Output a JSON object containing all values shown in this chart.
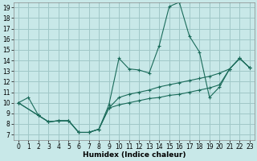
{
  "xlabel": "Humidex (Indice chaleur)",
  "bg_color": "#c8e8e8",
  "grid_color": "#a0c8c8",
  "line_color": "#1a6b5a",
  "xlim": [
    -0.5,
    23.5
  ],
  "ylim": [
    6.5,
    19.5
  ],
  "xticks": [
    0,
    1,
    2,
    3,
    4,
    5,
    6,
    7,
    8,
    9,
    10,
    11,
    12,
    13,
    14,
    15,
    16,
    17,
    18,
    19,
    20,
    21,
    22,
    23
  ],
  "yticks": [
    7,
    8,
    9,
    10,
    11,
    12,
    13,
    14,
    15,
    16,
    17,
    18,
    19
  ],
  "curve_max_x": [
    0,
    1,
    2,
    3,
    4,
    5,
    6,
    7,
    8,
    9,
    10,
    11,
    12,
    13,
    14,
    15,
    16,
    17,
    18,
    19,
    20,
    21,
    22,
    23
  ],
  "curve_max_y": [
    10.0,
    10.5,
    8.8,
    8.2,
    8.3,
    8.3,
    7.2,
    7.2,
    7.5,
    9.8,
    14.2,
    13.2,
    13.1,
    12.8,
    15.4,
    19.1,
    19.5,
    16.3,
    14.8,
    10.5,
    11.5,
    13.2,
    14.2,
    13.3
  ],
  "curve_min_x": [
    0,
    2,
    3,
    4,
    5,
    6,
    7,
    8,
    9,
    10,
    11,
    12,
    13,
    14,
    15,
    16,
    17,
    18,
    19,
    20,
    21,
    22,
    23
  ],
  "curve_min_y": [
    10.0,
    8.8,
    8.2,
    8.3,
    8.3,
    7.2,
    7.2,
    7.5,
    9.5,
    9.8,
    10.0,
    10.2,
    10.4,
    10.5,
    10.7,
    10.8,
    11.0,
    11.2,
    11.4,
    11.7,
    13.2,
    14.2,
    13.3
  ],
  "curve_mean_x": [
    0,
    2,
    3,
    4,
    5,
    6,
    7,
    8,
    9,
    10,
    11,
    12,
    13,
    14,
    15,
    16,
    17,
    18,
    19,
    20,
    21,
    22,
    23
  ],
  "curve_mean_y": [
    10.0,
    8.8,
    8.2,
    8.3,
    8.3,
    7.2,
    7.2,
    7.5,
    9.5,
    10.5,
    10.8,
    11.0,
    11.2,
    11.5,
    11.7,
    11.9,
    12.1,
    12.3,
    12.5,
    12.8,
    13.2,
    14.2,
    13.3
  ]
}
